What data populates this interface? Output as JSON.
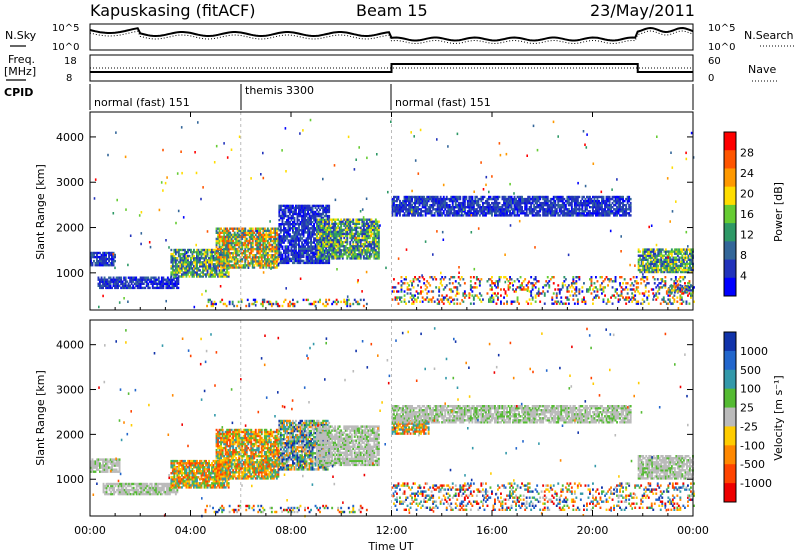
{
  "header": {
    "station": "Kapuskasing (fitACF)",
    "beam": "Beam 15",
    "date": "23/May/2011"
  },
  "noise_panel": {
    "left_label": "N.Sky",
    "right_label": "N.Search",
    "left_ticks": [
      "10^5",
      "10^0"
    ],
    "right_ticks": [
      "10^5",
      "10^0"
    ]
  },
  "freq_panel": {
    "left_label_1": "Freq.",
    "left_label_2": "[MHz]",
    "left_ticks": [
      "18",
      "8"
    ],
    "right_label": "Nave",
    "right_ticks": [
      "60",
      "0"
    ]
  },
  "cpid": {
    "label": "CPID",
    "segments": [
      {
        "name": "normal (fast) 151",
        "start_hr": 0.0,
        "end_hr": 6.0
      },
      {
        "name": "themis 3300",
        "start_hr": 6.0,
        "end_hr": 12.0
      },
      {
        "name": "normal (fast) 151",
        "start_hr": 12.0,
        "end_hr": 24.0
      }
    ]
  },
  "x_axis": {
    "label": "Time UT",
    "ticks": [
      "00:00",
      "04:00",
      "08:00",
      "12:00",
      "16:00",
      "20:00",
      "00:00"
    ]
  },
  "chart_data": [
    {
      "type": "heatmap",
      "xlabel": "Time UT",
      "ylabel": "Slant Range [km]",
      "xlim": [
        0,
        24
      ],
      "ylim": [
        180,
        4550
      ],
      "yticks": [
        "4000",
        "3000",
        "2000",
        "1000"
      ],
      "colorbar": {
        "label": "Power [dB]",
        "ticks": [
          "28",
          "24",
          "20",
          "16",
          "12",
          "8",
          "4"
        ],
        "colors": [
          "#ff0000",
          "#ff5500",
          "#ff9900",
          "#ffdd00",
          "#66cc33",
          "#2e9966",
          "#336699",
          "#2233bb",
          "#0000ff"
        ]
      },
      "regions": [
        {
          "t0": 0.0,
          "t1": 1.0,
          "r0": 1150,
          "r1": 1450,
          "level": "low"
        },
        {
          "t0": 0.3,
          "t1": 3.5,
          "r0": 650,
          "r1": 900,
          "level": "low"
        },
        {
          "t0": 3.2,
          "t1": 5.5,
          "r0": 900,
          "r1": 1500,
          "level": "medium"
        },
        {
          "t0": 5.0,
          "t1": 7.5,
          "r0": 1100,
          "r1": 2000,
          "level": "high"
        },
        {
          "t0": 7.5,
          "t1": 9.5,
          "r0": 1200,
          "r1": 2500,
          "level": "low"
        },
        {
          "t0": 9.0,
          "t1": 11.5,
          "r0": 1300,
          "r1": 2200,
          "level": "medium"
        },
        {
          "t0": 12.0,
          "t1": 21.5,
          "r0": 2250,
          "r1": 2700,
          "level": "low"
        },
        {
          "t0": 21.8,
          "t1": 24.0,
          "r0": 1000,
          "r1": 1500,
          "level": "medium"
        },
        {
          "t0": 23.0,
          "t1": 24.0,
          "r0": 550,
          "r1": 700,
          "level": "medium"
        },
        {
          "t0": 4.5,
          "t1": 11.0,
          "r0": 250,
          "r1": 400,
          "level": "scatter"
        },
        {
          "t0": 12.0,
          "t1": 24.0,
          "r0": 300,
          "r1": 900,
          "level": "scatter"
        }
      ]
    },
    {
      "type": "heatmap",
      "xlabel": "Time UT",
      "ylabel": "Slant Range [km]",
      "xlim": [
        0,
        24
      ],
      "ylim": [
        180,
        4550
      ],
      "yticks": [
        "4000",
        "3000",
        "2000",
        "1000"
      ],
      "colorbar": {
        "label": "Velocity [m s⁻¹]",
        "ticks": [
          "1000",
          "500",
          "100",
          "25",
          "-25",
          "-100",
          "-500",
          "-1000"
        ],
        "colors": [
          "#1133aa",
          "#2266cc",
          "#3399aa",
          "#55bb33",
          "#bbbbbb",
          "#ffcc00",
          "#ff8800",
          "#ff4400",
          "#ee0000"
        ]
      },
      "regions": [
        {
          "t0": 0.0,
          "t1": 1.2,
          "r0": 1150,
          "r1": 1450,
          "level": "ground"
        },
        {
          "t0": 0.5,
          "t1": 3.5,
          "r0": 650,
          "r1": 900,
          "level": "ground"
        },
        {
          "t0": 3.2,
          "t1": 5.5,
          "r0": 800,
          "r1": 1400,
          "level": "away"
        },
        {
          "t0": 5.0,
          "t1": 7.5,
          "r0": 1000,
          "r1": 2100,
          "level": "away"
        },
        {
          "t0": 7.5,
          "t1": 9.5,
          "r0": 1200,
          "r1": 2300,
          "level": "mixed"
        },
        {
          "t0": 9.0,
          "t1": 11.5,
          "r0": 1300,
          "r1": 2200,
          "level": "ground"
        },
        {
          "t0": 12.0,
          "t1": 13.5,
          "r0": 2000,
          "r1": 2300,
          "level": "away"
        },
        {
          "t0": 12.0,
          "t1": 21.5,
          "r0": 2250,
          "r1": 2650,
          "level": "ground"
        },
        {
          "t0": 21.8,
          "t1": 24.0,
          "r0": 1000,
          "r1": 1500,
          "level": "ground"
        },
        {
          "t0": 4.5,
          "t1": 11.0,
          "r0": 250,
          "r1": 400,
          "level": "scatter"
        },
        {
          "t0": 12.0,
          "t1": 24.0,
          "r0": 300,
          "r1": 900,
          "level": "scatter"
        }
      ]
    }
  ]
}
